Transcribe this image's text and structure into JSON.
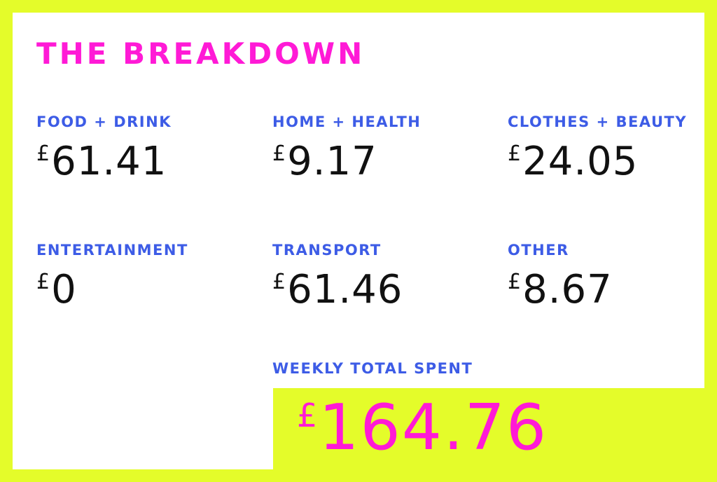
{
  "title": "THE BREAKDOWN",
  "currency": "£",
  "categories": [
    {
      "label": "FOOD + DRINK",
      "amount": "61.41"
    },
    {
      "label": "HOME + HEALTH",
      "amount": "9.17"
    },
    {
      "label": "CLOTHES + BEAUTY",
      "amount": "24.05"
    },
    {
      "label": "ENTERTAINMENT",
      "amount": "0"
    },
    {
      "label": "TRANSPORT",
      "amount": "61.46"
    },
    {
      "label": "OTHER",
      "amount": "8.67"
    }
  ],
  "total": {
    "label": "WEEKLY TOTAL SPENT",
    "amount": "164.76"
  },
  "colors": {
    "background": "#e4fc2a",
    "title": "#ff1ad6",
    "label": "#3d5ce6",
    "amount": "#111111",
    "total": "#ff1ad6"
  }
}
